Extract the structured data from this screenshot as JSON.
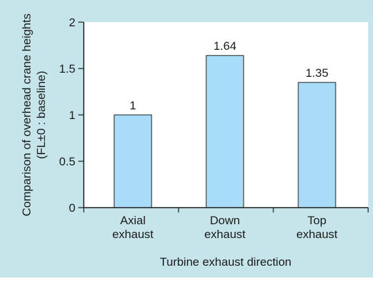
{
  "chart_data": {
    "type": "bar",
    "title": "",
    "xlabel": "Turbine exhaust direction",
    "ylabel_lines": [
      "Comparison of overhead crane heights",
      "(FL±0 : baseline)"
    ],
    "categories": [
      [
        "Axial",
        "exhaust"
      ],
      [
        "Down",
        "exhaust"
      ],
      [
        "Top",
        "exhaust"
      ]
    ],
    "values": [
      1,
      1.64,
      1.35
    ],
    "value_labels": [
      "1",
      "1.64",
      "1.35"
    ],
    "ylim": [
      0,
      2
    ],
    "yticks": [
      0,
      0.5,
      1,
      1.5,
      2
    ],
    "ytick_labels": [
      "0",
      "0.5",
      "1",
      "1.5",
      "2"
    ],
    "grid": false,
    "colors": {
      "background": "#c6e5ea",
      "plot_area": "#ffffff",
      "bar_fill": "#a9dcf6",
      "bar_stroke": "#1a1a1a",
      "axis": "#1a1a1a"
    }
  }
}
